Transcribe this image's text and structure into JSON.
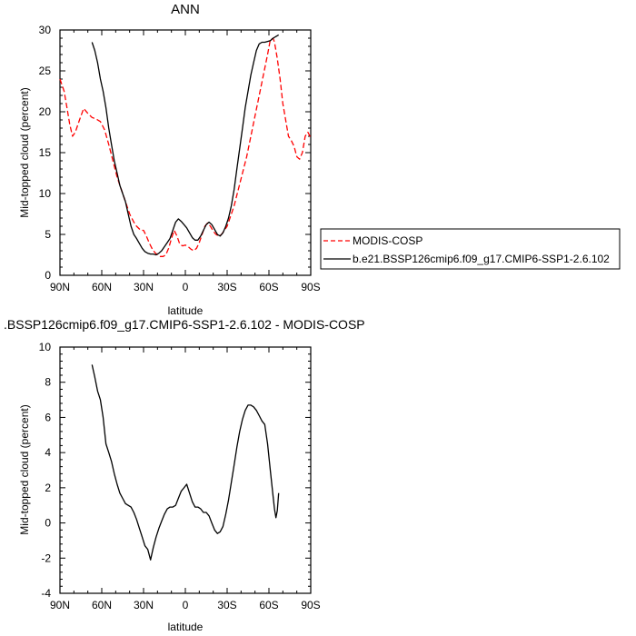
{
  "chart_data": [
    {
      "type": "line",
      "title": "ANN",
      "xlabel": "latitude",
      "ylabel": "Mid-topped cloud (percent)",
      "xlim": [
        90,
        -90
      ],
      "ylim": [
        0,
        30
      ],
      "xticks": [
        90,
        60,
        30,
        0,
        -30,
        -60,
        -90
      ],
      "xtick_labels": [
        "90N",
        "60N",
        "30N",
        "0",
        "30S",
        "60S",
        "90S"
      ],
      "yticks": [
        0,
        5,
        10,
        15,
        20,
        25,
        30
      ],
      "ytick_labels": [
        "0",
        "5",
        "10",
        "15",
        "20",
        "25",
        "30"
      ],
      "grid": false,
      "legend_position": "right",
      "series": [
        {
          "name": "MODIS-COSP",
          "color": "#ff0000",
          "style": "dashed",
          "x": [
            90,
            87,
            85,
            83,
            81,
            79,
            76,
            73,
            70,
            67,
            64,
            61,
            58,
            55,
            52,
            49,
            46,
            43,
            40,
            37,
            35,
            32,
            30,
            28,
            26,
            24,
            22,
            20,
            18,
            16,
            14,
            12,
            10,
            8,
            6,
            4,
            2,
            0,
            -2,
            -4,
            -6,
            -8,
            -10,
            -12,
            -14,
            -16,
            -18,
            -20,
            -22,
            -24,
            -26,
            -28,
            -30,
            -32,
            -35,
            -38,
            -41,
            -44,
            -47,
            -50,
            -53,
            -56,
            -59,
            -61,
            -63,
            -64,
            -65,
            -66,
            -68,
            -70,
            -72,
            -74,
            -76,
            -78,
            -80,
            -82,
            -84,
            -86,
            -88,
            -90
          ],
          "y": [
            24.0,
            22.5,
            20.5,
            18.5,
            17.0,
            17.5,
            19.0,
            20.4,
            19.8,
            19.3,
            19.1,
            18.8,
            17.8,
            16.0,
            14.0,
            12.0,
            10.5,
            9.0,
            7.5,
            6.5,
            6.0,
            5.5,
            5.5,
            4.8,
            4.0,
            3.3,
            2.8,
            2.5,
            2.3,
            2.3,
            2.5,
            3.3,
            4.5,
            5.5,
            4.8,
            3.8,
            3.6,
            3.7,
            3.5,
            3.2,
            3.0,
            3.3,
            4.0,
            5.0,
            6.0,
            6.4,
            6.0,
            5.4,
            5.0,
            4.8,
            5.0,
            5.5,
            6.0,
            7.0,
            8.5,
            10.5,
            12.5,
            14.5,
            17.0,
            19.5,
            22.0,
            24.5,
            27.0,
            28.8,
            29.0,
            28.5,
            27.5,
            26.5,
            24.0,
            21.0,
            19.0,
            17.0,
            16.5,
            15.8,
            14.5,
            14.2,
            15.0,
            17.0,
            17.5,
            16.8
          ]
        },
        {
          "name": "b.e21.BSSP126cmip6.f09_g17.CMIP6-SSP1-2.6.102",
          "color": "#000000",
          "style": "solid",
          "x": [
            67,
            65,
            63,
            61,
            59,
            57,
            55,
            53,
            51,
            49,
            47,
            45,
            43,
            41,
            39,
            37,
            35,
            33,
            31,
            29,
            27,
            25,
            23,
            21,
            19,
            17,
            15,
            13,
            11,
            9,
            7,
            5,
            3,
            1,
            -1,
            -3,
            -5,
            -7,
            -9,
            -11,
            -13,
            -15,
            -17,
            -19,
            -21,
            -23,
            -25,
            -27,
            -29,
            -31,
            -33,
            -35,
            -37,
            -39,
            -41,
            -43,
            -45,
            -47,
            -49,
            -51,
            -53,
            -55,
            -57,
            -59,
            -61,
            -63,
            -65,
            -67
          ],
          "y": [
            28.5,
            27.5,
            26.0,
            24.0,
            22.5,
            20.5,
            18.0,
            16.0,
            14.0,
            12.5,
            11.0,
            10.0,
            9.0,
            7.5,
            6.0,
            5.0,
            4.5,
            3.9,
            3.3,
            2.9,
            2.7,
            2.6,
            2.6,
            2.5,
            2.7,
            3.0,
            3.5,
            4.0,
            4.5,
            5.5,
            6.5,
            6.9,
            6.6,
            6.2,
            5.8,
            5.2,
            4.6,
            4.3,
            4.3,
            4.8,
            5.5,
            6.2,
            6.5,
            6.2,
            5.6,
            5.0,
            4.8,
            5.2,
            6.0,
            7.0,
            8.5,
            10.5,
            13.0,
            15.5,
            18.0,
            20.5,
            22.5,
            24.5,
            26.0,
            27.5,
            28.3,
            28.5,
            28.5,
            28.6,
            28.7,
            29.0,
            29.2,
            29.4
          ]
        }
      ]
    },
    {
      "type": "line",
      "title": ".BSSP126cmip6.f09_g17.CMIP6-SSP1-2.6.102 - MODIS-COSP",
      "xlabel": "latitude",
      "ylabel": "Mid-topped cloud (percent)",
      "xlim": [
        90,
        -90
      ],
      "ylim": [
        -4,
        10
      ],
      "xticks": [
        90,
        60,
        30,
        0,
        -30,
        -60,
        -90
      ],
      "xtick_labels": [
        "90N",
        "60N",
        "30N",
        "0",
        "30S",
        "60S",
        "90S"
      ],
      "yticks": [
        -4,
        -2,
        0,
        2,
        4,
        6,
        8,
        10
      ],
      "ytick_labels": [
        "-4",
        "-2",
        "0",
        "2",
        "4",
        "6",
        "8",
        "10"
      ],
      "grid": false,
      "series": [
        {
          "color": "#000000",
          "style": "solid",
          "x": [
            67,
            65,
            63,
            61,
            59,
            57,
            55,
            53,
            51,
            49,
            47,
            45,
            43,
            41,
            39,
            37,
            35,
            33,
            31,
            29,
            27,
            25,
            23,
            21,
            19,
            17,
            15,
            13,
            11,
            9,
            7,
            5,
            3,
            1,
            -1,
            -3,
            -5,
            -7,
            -9,
            -11,
            -13,
            -15,
            -17,
            -19,
            -21,
            -23,
            -25,
            -27,
            -29,
            -31,
            -33,
            -35,
            -37,
            -39,
            -41,
            -43,
            -45,
            -47,
            -49,
            -51,
            -53,
            -55,
            -57,
            -59,
            -61,
            -63,
            -64,
            -65,
            -66,
            -67
          ],
          "y": [
            9.0,
            8.3,
            7.5,
            7.0,
            6.0,
            4.5,
            4.0,
            3.5,
            2.8,
            2.2,
            1.7,
            1.4,
            1.1,
            1.0,
            0.9,
            0.6,
            0.2,
            -0.3,
            -0.8,
            -1.3,
            -1.5,
            -2.1,
            -1.4,
            -0.8,
            -0.3,
            0.1,
            0.5,
            0.8,
            0.9,
            0.9,
            1.0,
            1.4,
            1.8,
            2.0,
            2.2,
            1.7,
            1.2,
            0.9,
            0.9,
            0.8,
            0.6,
            0.6,
            0.4,
            0.0,
            -0.4,
            -0.6,
            -0.5,
            -0.2,
            0.5,
            1.3,
            2.3,
            3.3,
            4.3,
            5.2,
            5.9,
            6.4,
            6.7,
            6.7,
            6.6,
            6.4,
            6.1,
            5.8,
            5.6,
            4.5,
            3.0,
            1.5,
            0.8,
            0.3,
            0.7,
            1.7
          ]
        }
      ]
    }
  ]
}
